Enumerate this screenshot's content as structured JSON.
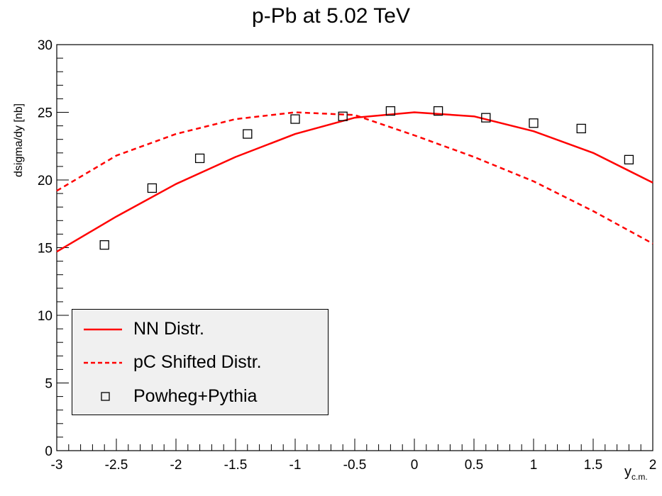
{
  "chart_data": {
    "type": "line",
    "title": "p-Pb at 5.02 TeV",
    "xlabel": "y",
    "xlabel_subscript": "c.m.",
    "ylabel": "dsigma/dy [nb]",
    "xlim": [
      -3,
      2
    ],
    "ylim": [
      0,
      30
    ],
    "x_ticks": [
      -3,
      -2.5,
      -2,
      -1.5,
      -1,
      -0.5,
      0,
      0.5,
      1,
      1.5,
      2
    ],
    "x_tick_labels": [
      "-3",
      "-2.5",
      "-2",
      "-1.5",
      "-1",
      "-0.5",
      "0",
      "0.5",
      "1",
      "1.5",
      "2"
    ],
    "y_ticks": [
      0,
      5,
      10,
      15,
      20,
      25,
      30
    ],
    "y_tick_labels": [
      "0",
      "5",
      "10",
      "15",
      "20",
      "25",
      "30"
    ],
    "legend_position": "bottom-left",
    "series": [
      {
        "name": "NN Distr.",
        "style": "solid",
        "color": "#ff0000",
        "x": [
          -3,
          -2.5,
          -2,
          -1.5,
          -1,
          -0.5,
          0,
          0.5,
          1,
          1.5,
          2
        ],
        "y": [
          14.7,
          17.3,
          19.7,
          21.7,
          23.4,
          24.6,
          25.0,
          24.7,
          23.6,
          22.0,
          19.8
        ]
      },
      {
        "name": "pC Shifted Distr.",
        "style": "dashed",
        "color": "#ff0000",
        "x": [
          -3,
          -2.5,
          -2,
          -1.5,
          -1,
          -0.5,
          0,
          0.5,
          1,
          1.5,
          2
        ],
        "y": [
          19.2,
          21.8,
          23.4,
          24.5,
          25.0,
          24.8,
          23.3,
          21.7,
          19.9,
          17.7,
          15.3
        ]
      },
      {
        "name": "Powheg+Pythia",
        "style": "open-square",
        "color": "#000000",
        "x": [
          -2.6,
          -2.2,
          -1.8,
          -1.4,
          -1.0,
          -0.6,
          -0.2,
          0.2,
          0.6,
          1.0,
          1.4,
          1.8
        ],
        "y": [
          15.2,
          19.4,
          21.6,
          23.4,
          24.5,
          24.7,
          25.1,
          25.1,
          24.6,
          24.2,
          23.8,
          21.5
        ]
      }
    ]
  }
}
